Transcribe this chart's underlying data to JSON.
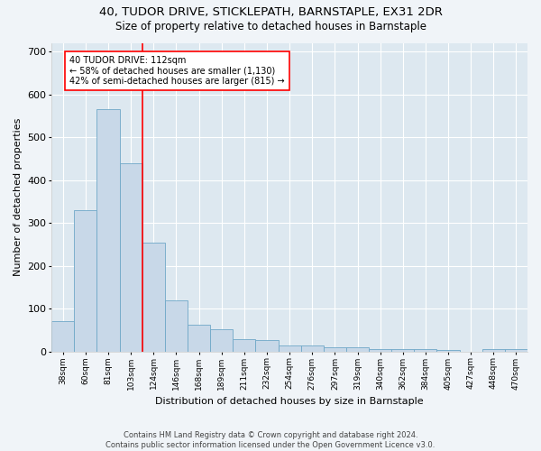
{
  "title": "40, TUDOR DRIVE, STICKLEPATH, BARNSTAPLE, EX31 2DR",
  "subtitle": "Size of property relative to detached houses in Barnstaple",
  "xlabel": "Distribution of detached houses by size in Barnstaple",
  "ylabel": "Number of detached properties",
  "footer_line1": "Contains HM Land Registry data © Crown copyright and database right 2024.",
  "footer_line2": "Contains public sector information licensed under the Open Government Licence v3.0.",
  "categories": [
    "38sqm",
    "60sqm",
    "81sqm",
    "103sqm",
    "124sqm",
    "146sqm",
    "168sqm",
    "189sqm",
    "211sqm",
    "232sqm",
    "254sqm",
    "276sqm",
    "297sqm",
    "319sqm",
    "340sqm",
    "362sqm",
    "384sqm",
    "405sqm",
    "427sqm",
    "448sqm",
    "470sqm"
  ],
  "values": [
    70,
    330,
    565,
    440,
    255,
    120,
    62,
    52,
    28,
    27,
    15,
    15,
    10,
    10,
    5,
    5,
    5,
    4,
    0,
    5,
    5
  ],
  "bar_color": "#c8d8e8",
  "bar_edge_color": "#6fa8c8",
  "background_color": "#dde8f0",
  "grid_color": "#ffffff",
  "property_label": "40 TUDOR DRIVE: 112sqm",
  "annotation_line1": "← 58% of detached houses are smaller (1,130)",
  "annotation_line2": "42% of semi-detached houses are larger (815) →",
  "red_line_x": 3.5,
  "ylim": [
    0,
    720
  ],
  "yticks": [
    0,
    100,
    200,
    300,
    400,
    500,
    600,
    700
  ],
  "fig_bg": "#f0f4f8"
}
